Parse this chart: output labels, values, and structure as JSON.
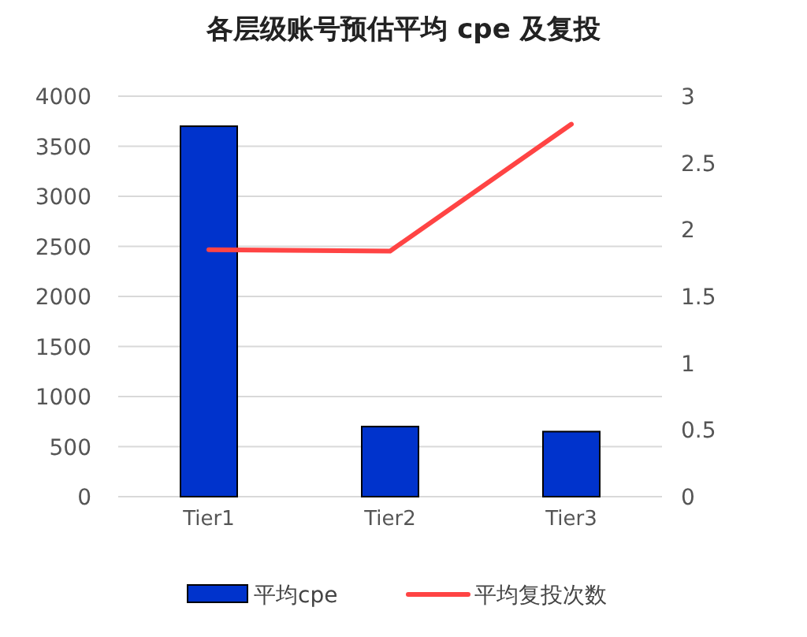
{
  "chart_data": {
    "type": "bar",
    "title": "各层级账号预估平均 cpe 及复投",
    "categories": [
      "Tier1",
      "Tier2",
      "Tier3"
    ],
    "series": [
      {
        "name": "平均cpe",
        "color": "#0033cc",
        "values": [
          3700,
          700,
          650
        ]
      },
      {
        "name": "平均复投次数",
        "type": "line",
        "axis": "y2",
        "color": "#ff4444",
        "values": [
          1.85,
          1.84,
          2.79
        ]
      }
    ],
    "ylim": [
      0,
      4000
    ],
    "yticks": [
      0,
      500,
      1000,
      1500,
      2000,
      2500,
      3000,
      3500,
      4000
    ],
    "y2lim": [
      0,
      3
    ],
    "y2ticks": [
      0,
      0.5,
      1,
      1.5,
      2,
      2.5,
      3
    ],
    "grid": "y",
    "legend": "bottom"
  }
}
